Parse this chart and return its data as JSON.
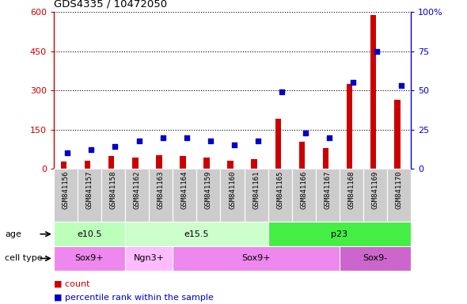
{
  "title": "GDS4335 / 10472050",
  "samples": [
    "GSM841156",
    "GSM841157",
    "GSM841158",
    "GSM841162",
    "GSM841163",
    "GSM841164",
    "GSM841159",
    "GSM841160",
    "GSM841161",
    "GSM841165",
    "GSM841166",
    "GSM841167",
    "GSM841168",
    "GSM841169",
    "GSM841170"
  ],
  "counts": [
    28,
    32,
    48,
    42,
    52,
    48,
    42,
    32,
    38,
    190,
    105,
    80,
    325,
    590,
    265
  ],
  "percentile_ranks": [
    10,
    12,
    14,
    18,
    20,
    20,
    18,
    15,
    18,
    49,
    23,
    20,
    55,
    75,
    53
  ],
  "ylim_left": [
    0,
    600
  ],
  "ylim_right": [
    0,
    100
  ],
  "yticks_left": [
    0,
    150,
    300,
    450,
    600
  ],
  "yticks_right": [
    0,
    25,
    50,
    75,
    100
  ],
  "age_groups": [
    {
      "label": "e10.5",
      "start": 0,
      "end": 3,
      "color": "#bbffbb"
    },
    {
      "label": "e15.5",
      "start": 3,
      "end": 9,
      "color": "#ccffcc"
    },
    {
      "label": "p23",
      "start": 9,
      "end": 15,
      "color": "#44ee44"
    }
  ],
  "cell_type_groups": [
    {
      "label": "Sox9+",
      "start": 0,
      "end": 3,
      "color": "#ee88ee"
    },
    {
      "label": "Ngn3+",
      "start": 3,
      "end": 5,
      "color": "#ffbbff"
    },
    {
      "label": "Sox9+",
      "start": 5,
      "end": 12,
      "color": "#ee88ee"
    },
    {
      "label": "Sox9-",
      "start": 12,
      "end": 15,
      "color": "#cc66cc"
    }
  ],
  "bar_color": "#cc0000",
  "dot_color": "#0000cc",
  "bg_color": "#ffffff",
  "row_bg": "#cccccc",
  "legend_items": [
    "count",
    "percentile rank within the sample"
  ]
}
